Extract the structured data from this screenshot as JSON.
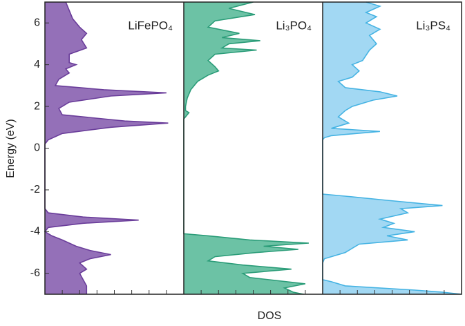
{
  "chart_data": {
    "type": "area",
    "ylabel": "Energy (eV)",
    "xlabel": "DOS",
    "ylim": [
      -7,
      7
    ],
    "yticks": [
      -6,
      -4,
      -2,
      0,
      2,
      4,
      6
    ],
    "xlim": [
      0,
      8
    ],
    "xticks": [
      1,
      2,
      3,
      4,
      5,
      6,
      7
    ],
    "series": [
      {
        "name": "LiFePO₄",
        "color": "#6a3d9a",
        "fill": "#9470b8",
        "energy": [
          7,
          6.6,
          6.2,
          5.8,
          5.5,
          5.2,
          4.8,
          4.5,
          4.1,
          4.0,
          3.8,
          3.6,
          3.3,
          3.0,
          2.8,
          2.65,
          2.5,
          2.2,
          1.9,
          1.6,
          1.3,
          1.2,
          1.0,
          0.7,
          0.4,
          0.2,
          -2.9,
          -3.1,
          -3.3,
          -3.45,
          -3.6,
          -3.8,
          -4.0,
          -4.2,
          -4.4,
          -4.7,
          -4.9,
          -5.1,
          -5.3,
          -5.5,
          -5.8,
          -6.0,
          -6.3,
          -6.6,
          -7
        ],
        "dos": [
          1.2,
          1.4,
          1.6,
          2,
          2.4,
          2.1,
          2.4,
          1.4,
          1.4,
          1.8,
          1.2,
          1.4,
          0.8,
          0.6,
          3.4,
          7,
          3.8,
          1.4,
          0.8,
          1,
          4.6,
          7.1,
          3.8,
          1,
          0.2,
          0,
          0,
          0.2,
          2.2,
          5.4,
          2.2,
          0.2,
          0,
          0.4,
          1,
          1.8,
          2.6,
          3.8,
          2.6,
          2,
          2.4,
          2,
          2.2,
          2.4,
          2.4
        ]
      },
      {
        "name": "Li₃PO₄",
        "color": "#2a9c78",
        "fill": "#6cc2a5",
        "energy": [
          7,
          6.7,
          6.4,
          6.1,
          5.8,
          5.5,
          5.3,
          5.15,
          5.0,
          4.8,
          4.7,
          4.5,
          4.2,
          3.9,
          3.7,
          3.5,
          3.2,
          2.8,
          2.4,
          2.0,
          1.8,
          1.7,
          1.5,
          1.4,
          -4.1,
          -4.2,
          -4.4,
          -4.55,
          -4.7,
          -4.85,
          -5.0,
          -5.2,
          -5.4,
          -5.6,
          -5.8,
          -6.0,
          -6.2,
          -6.5,
          -6.7,
          -6.9,
          -7
        ],
        "dos": [
          4,
          2.6,
          4.1,
          1.8,
          1.4,
          3.2,
          2.2,
          4.4,
          2.6,
          2.2,
          4.2,
          1.8,
          1.4,
          1.8,
          2,
          1.4,
          0.8,
          0.4,
          0.2,
          0.1,
          0.1,
          0.3,
          0.1,
          0,
          0,
          1.4,
          3.8,
          7.2,
          4.6,
          6.6,
          4.2,
          1.8,
          1.4,
          3.4,
          6.2,
          3.4,
          3.8,
          7,
          5.8,
          6.3,
          6.9
        ]
      },
      {
        "name": "Li₃PS₄",
        "color": "#45b3e3",
        "fill": "#a2d8f3",
        "energy": [
          7,
          6.8,
          6.5,
          6.3,
          6.0,
          5.7,
          5.4,
          5.0,
          4.7,
          4.2,
          4.0,
          3.7,
          3.4,
          3.2,
          2.9,
          2.7,
          2.5,
          2.3,
          2.0,
          1.8,
          1.5,
          1.2,
          0.95,
          0.8,
          0.6,
          0.5,
          0.4,
          -2.2,
          -2.3,
          -2.5,
          -2.75,
          -2.9,
          -3.1,
          -3.4,
          -3.6,
          -3.8,
          -4.0,
          -4.2,
          -4.4,
          -4.6,
          -5.0,
          -5.3,
          -5.5,
          -6.3,
          -6.4,
          -6.6,
          -6.8,
          -6.9,
          -7
        ],
        "dos": [
          2.5,
          3.3,
          2.5,
          3.1,
          2.5,
          3.3,
          2.7,
          3.1,
          2.7,
          2.3,
          1.7,
          2.1,
          1.7,
          0.9,
          1.3,
          3.3,
          4.3,
          2.9,
          1.7,
          1.3,
          0.9,
          1.5,
          0.5,
          3.3,
          0.5,
          0.1,
          0,
          0,
          1.3,
          3.7,
          6.9,
          4.5,
          4.9,
          3.3,
          4.1,
          3.5,
          5.3,
          3.7,
          4.9,
          2.1,
          1.3,
          0.1,
          0,
          0,
          0.5,
          1.3,
          5.3,
          6.9,
          8
        ]
      }
    ]
  }
}
